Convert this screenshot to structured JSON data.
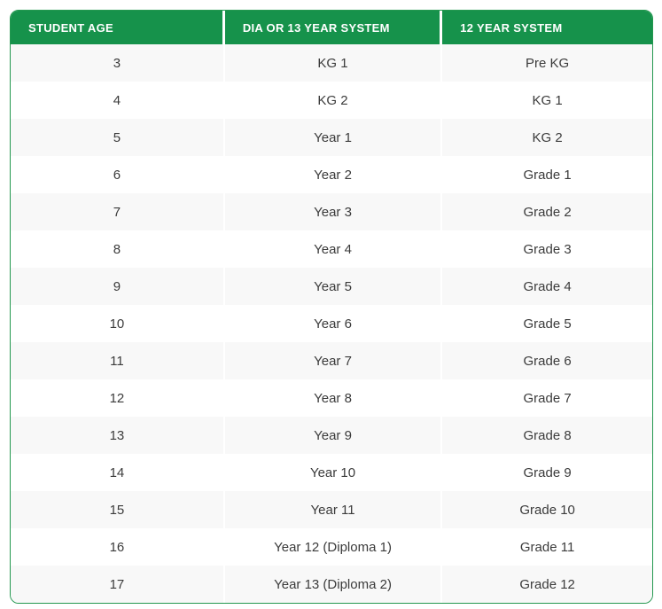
{
  "table": {
    "headers": [
      {
        "label": "STUDENT AGE"
      },
      {
        "label": "DIA OR 13 YEAR SYSTEM"
      },
      {
        "label": "12 YEAR SYSTEM"
      }
    ],
    "rows": [
      {
        "age": "3",
        "dia_13_year_system": "KG 1",
        "twelve_year_system": "Pre KG"
      },
      {
        "age": "4",
        "dia_13_year_system": "KG 2",
        "twelve_year_system": "KG 1"
      },
      {
        "age": "5",
        "dia_13_year_system": "Year 1",
        "twelve_year_system": "KG 2"
      },
      {
        "age": "6",
        "dia_13_year_system": "Year 2",
        "twelve_year_system": "Grade 1"
      },
      {
        "age": "7",
        "dia_13_year_system": "Year 3",
        "twelve_year_system": "Grade 2"
      },
      {
        "age": "8",
        "dia_13_year_system": "Year 4",
        "twelve_year_system": "Grade 3"
      },
      {
        "age": "9",
        "dia_13_year_system": "Year 5",
        "twelve_year_system": "Grade 4"
      },
      {
        "age": "10",
        "dia_13_year_system": "Year 6",
        "twelve_year_system": "Grade 5"
      },
      {
        "age": "11",
        "dia_13_year_system": "Year 7",
        "twelve_year_system": "Grade 6"
      },
      {
        "age": "12",
        "dia_13_year_system": "Year 8",
        "twelve_year_system": "Grade 7"
      },
      {
        "age": "13",
        "dia_13_year_system": "Year 9",
        "twelve_year_system": "Grade 8"
      },
      {
        "age": "14",
        "dia_13_year_system": "Year 10",
        "twelve_year_system": "Grade 9"
      },
      {
        "age": "15",
        "dia_13_year_system": "Year 11",
        "twelve_year_system": "Grade 10"
      },
      {
        "age": "16",
        "dia_13_year_system": "Year 12 (Diploma 1)",
        "twelve_year_system": "Grade 11"
      },
      {
        "age": "17",
        "dia_13_year_system": "Year 13 (Diploma 2)",
        "twelve_year_system": "Grade 12"
      }
    ],
    "colors": {
      "header_bg": "#16924b",
      "header_text": "#ffffff",
      "border_color": "#23984f",
      "row_odd_bg": "#f8f8f8",
      "row_even_bg": "#ffffff",
      "cell_text": "#3b3b3b"
    }
  }
}
